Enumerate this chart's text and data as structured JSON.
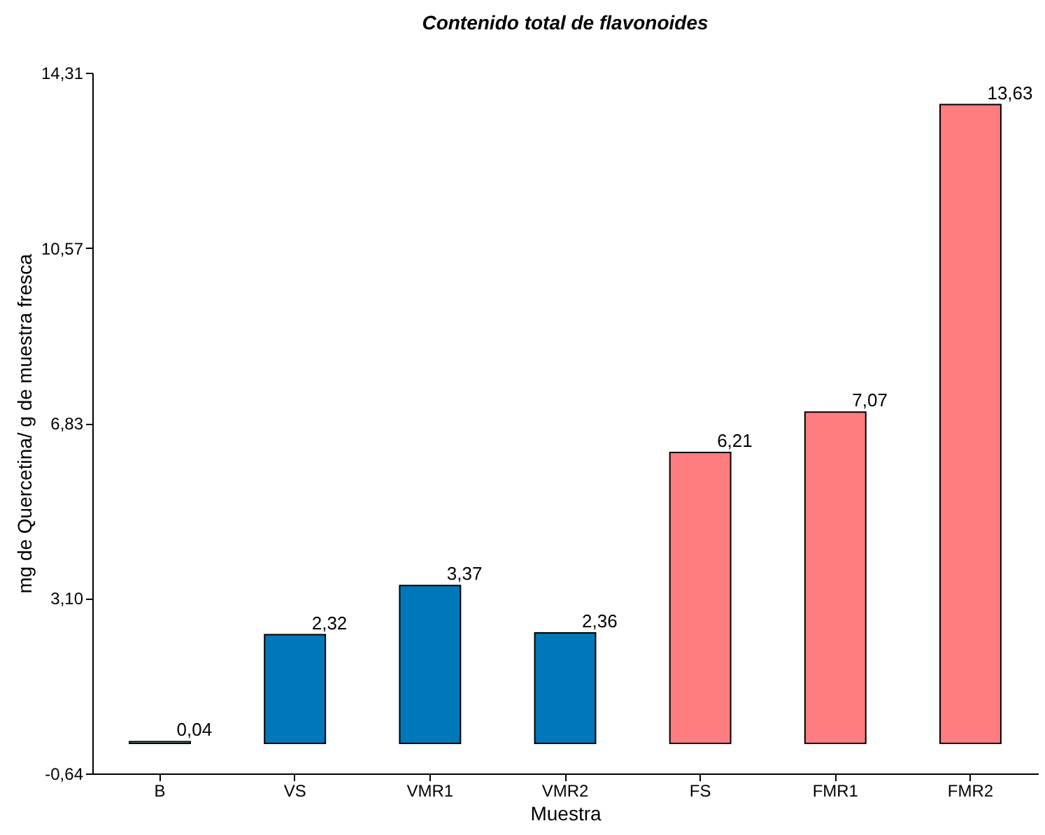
{
  "chart_data": {
    "type": "bar",
    "title": "Contenido total de flavonoides",
    "xlabel": "Muestra",
    "ylabel": "mg de Quercetina/ g de muestra fresca",
    "categories": [
      "B",
      "VS",
      "VMR1",
      "VMR2",
      "FS",
      "FMR1",
      "FMR2"
    ],
    "values": [
      0.04,
      2.32,
      3.37,
      2.36,
      6.21,
      7.07,
      13.63
    ],
    "colors": [
      "#b8ecc4",
      "#0077b8",
      "#0077b8",
      "#0077b8",
      "#ff7c80",
      "#ff7c80",
      "#ff7c80"
    ],
    "value_labels": [
      "0,04",
      "2,32",
      "3,37",
      "2,36",
      "6,21",
      "7,07",
      "13,63"
    ],
    "ylim": [
      -0.64,
      14.31
    ],
    "yticks": [
      {
        "value": -0.64,
        "label": "-0,64"
      },
      {
        "value": 3.1,
        "label": "3,10"
      },
      {
        "value": 6.83,
        "label": "6,83"
      },
      {
        "value": 10.57,
        "label": "10,57"
      },
      {
        "value": 14.31,
        "label": "14,31"
      }
    ],
    "grid": false
  }
}
